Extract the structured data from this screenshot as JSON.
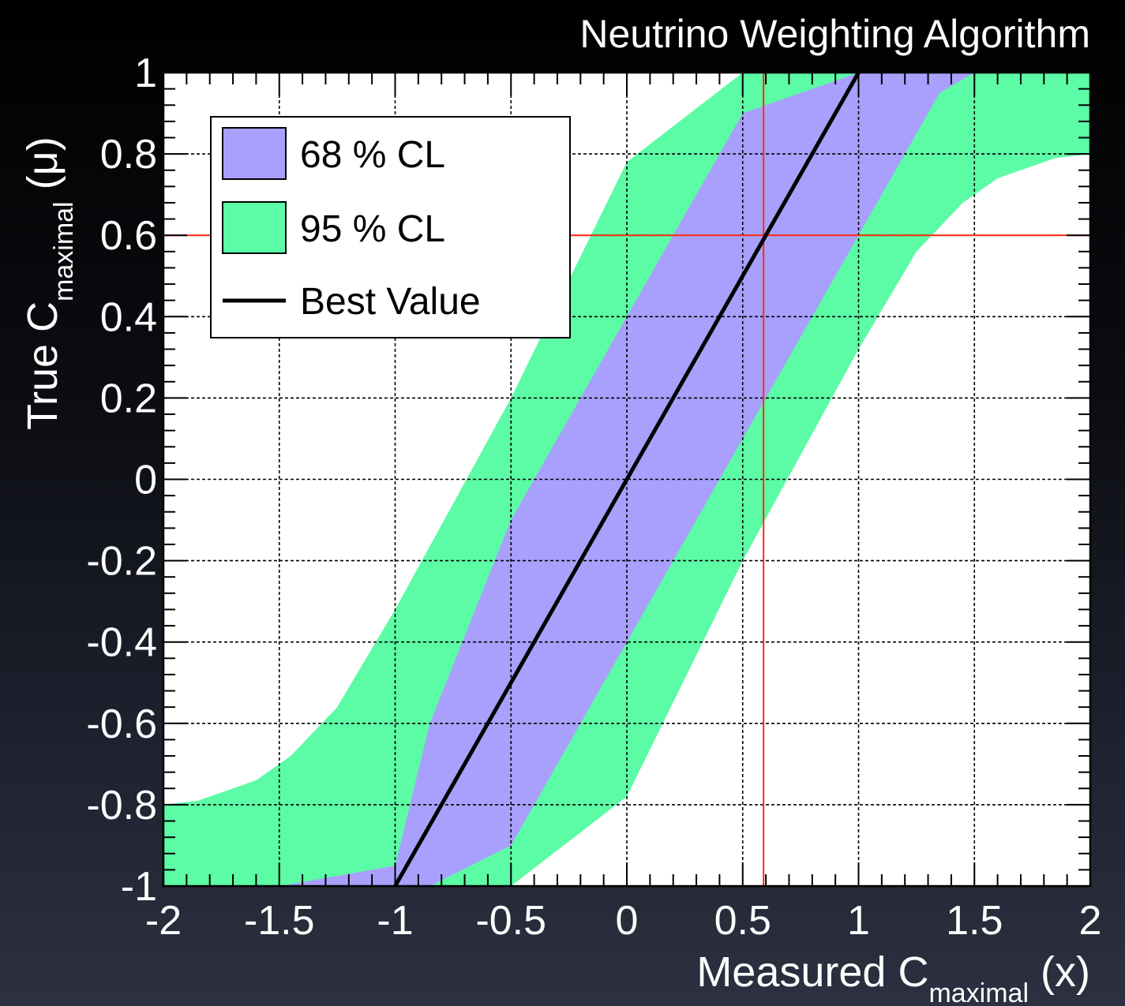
{
  "chart_data": {
    "type": "area",
    "title": "Neutrino Weighting Algorithm",
    "xlabel": {
      "main": "Measured C",
      "sub": "maximal",
      "tail": " (x)"
    },
    "ylabel": {
      "main": "True C",
      "sub": "maximal",
      "tail": " (μ)"
    },
    "xlim": [
      -2,
      2
    ],
    "ylim": [
      -1,
      1
    ],
    "x_ticks": [
      "-2",
      "-1.5",
      "-1",
      "-0.5",
      "0",
      "0.5",
      "1",
      "1.5",
      "2"
    ],
    "y_ticks": [
      "-1",
      "-0.8",
      "-0.6",
      "-0.4",
      "-0.2",
      "0",
      "0.2",
      "0.4",
      "0.6",
      "0.8",
      "1"
    ],
    "grid": true,
    "legend_position": "top-left",
    "legend": [
      {
        "label": "68 % CL",
        "kind": "fill",
        "color": "#a8a0fc"
      },
      {
        "label": "95 % CL",
        "kind": "fill",
        "color": "#5cfba5"
      },
      {
        "label": "Best Value",
        "kind": "line",
        "color": "#000000"
      }
    ],
    "colors": {
      "band68": "#a8a0fc",
      "band95": "#5cfba5",
      "line": "#000000",
      "marker": "#ff2a10"
    },
    "series": [
      {
        "name": "Best Value",
        "kind": "line",
        "x": [
          -1.0,
          1.0
        ],
        "y": [
          -1.0,
          1.0
        ]
      },
      {
        "name": "68 % CL",
        "kind": "band",
        "x": [
          -2.0,
          -1.5,
          -1.0,
          -0.85,
          -0.5,
          0.0,
          0.5,
          1.0,
          1.35,
          1.5,
          2.0
        ],
        "y_low": [
          -1.0,
          -1.0,
          -1.0,
          -1.0,
          -0.9,
          -0.4,
          0.1,
          0.6,
          0.95,
          1.0,
          1.0
        ],
        "y_high": [
          -1.0,
          -1.0,
          -0.95,
          -0.6,
          -0.1,
          0.4,
          0.9,
          1.0,
          1.0,
          1.0,
          1.0
        ]
      },
      {
        "name": "95 % CL",
        "kind": "band",
        "x": [
          -2.0,
          -1.85,
          -1.6,
          -1.45,
          -1.25,
          -1.0,
          -0.5,
          0.0,
          0.5,
          1.0,
          1.25,
          1.45,
          1.6,
          1.85,
          2.0
        ],
        "y_low": [
          -1.0,
          -1.0,
          -1.0,
          -1.0,
          -1.0,
          -1.0,
          -1.0,
          -0.78,
          -0.2,
          0.32,
          0.56,
          0.68,
          0.74,
          0.79,
          0.8
        ],
        "y_high": [
          -0.8,
          -0.79,
          -0.74,
          -0.68,
          -0.56,
          -0.32,
          0.2,
          0.78,
          1.0,
          1.0,
          1.0,
          1.0,
          1.0,
          1.0,
          1.0
        ]
      }
    ],
    "markers": {
      "x": 0.59,
      "y": 0.6
    }
  }
}
